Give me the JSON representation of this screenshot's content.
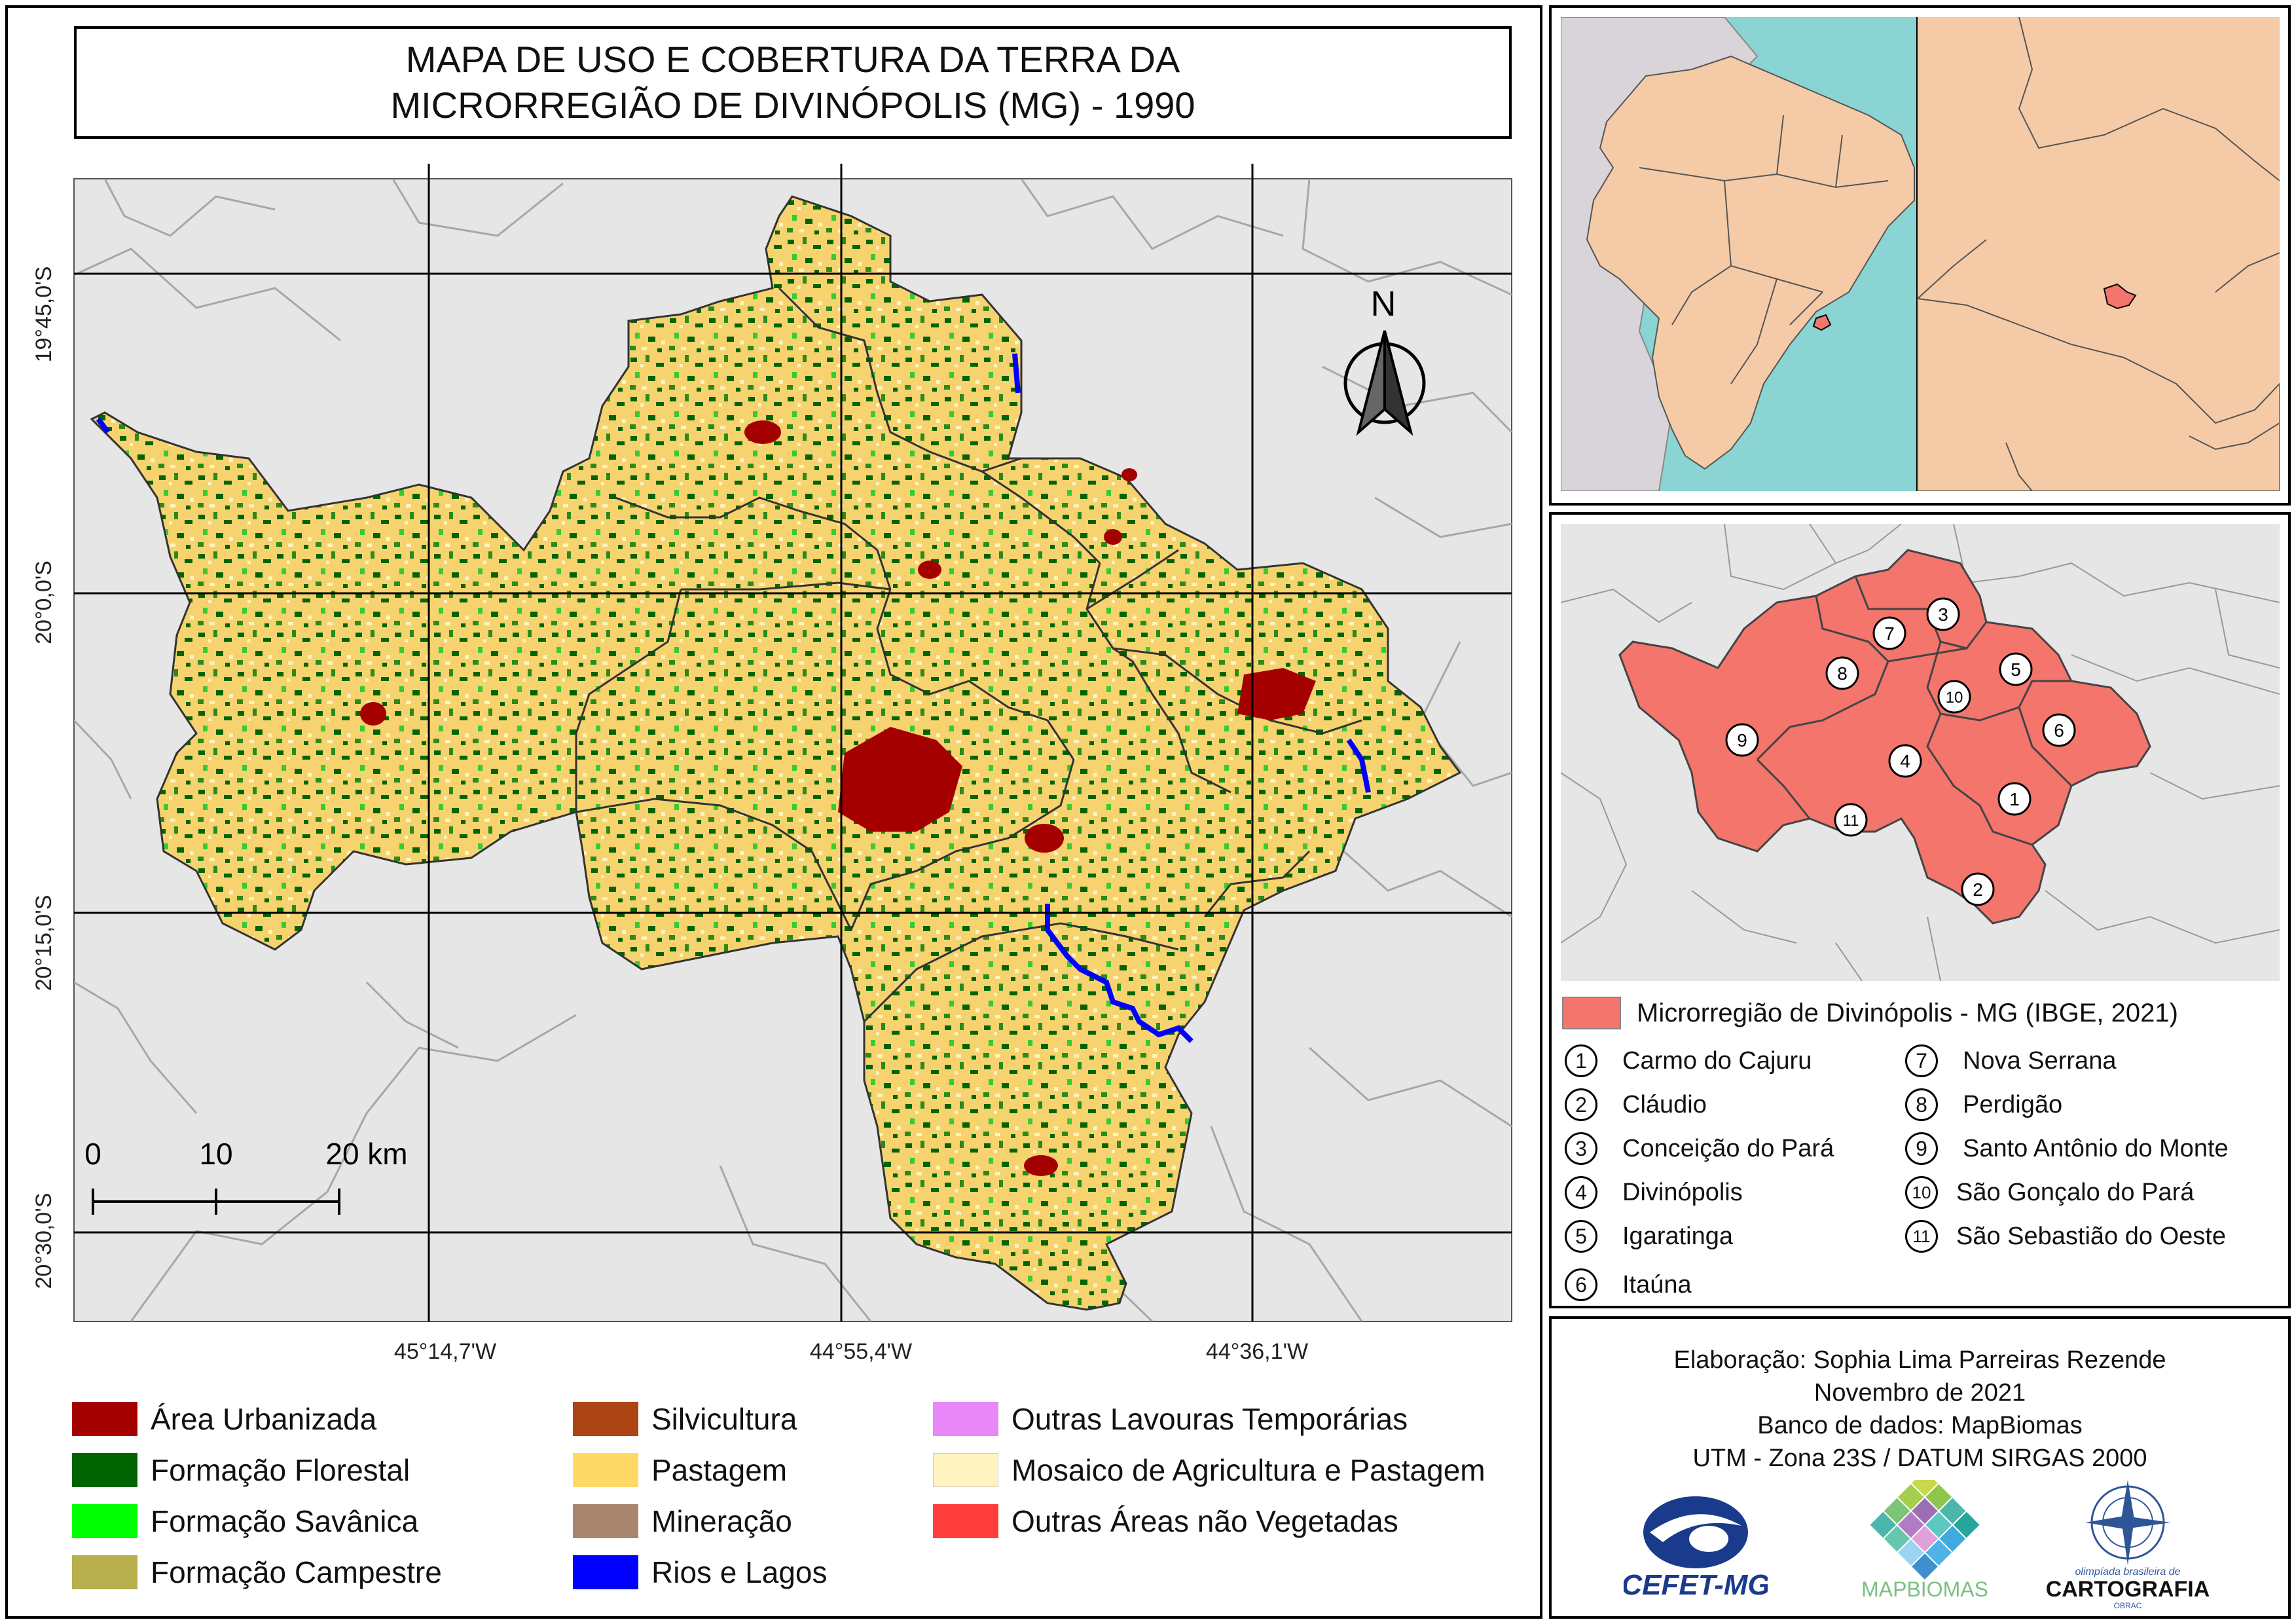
{
  "title": {
    "line1": "MAPA DE USO E COBERTURA DA TERRA DA",
    "line2": "MICRORREGIÃO DE DIVINÓPOLIS (MG) - 1990"
  },
  "grid": {
    "lat_labels": [
      "19°45,0'S",
      "20°0,0'S",
      "20°15,0'S",
      "20°30,0'S"
    ],
    "lon_labels": [
      "45°14,7'W",
      "44°55,4'W",
      "44°36,1'W"
    ]
  },
  "north_arrow": {
    "label": "N"
  },
  "scale_bar": {
    "labels": [
      "0",
      "10",
      "20 km"
    ]
  },
  "legend": {
    "items": [
      {
        "label": "Área Urbanizada",
        "color": "#a50000"
      },
      {
        "label": "Formação Florestal",
        "color": "#006400"
      },
      {
        "label": "Formação Savânica",
        "color": "#00ff00"
      },
      {
        "label": "Formação Campestre",
        "color": "#b8af4f"
      },
      {
        "label": "Silvicultura",
        "color": "#ad4413"
      },
      {
        "label": "Pastagem",
        "color": "#ffd966"
      },
      {
        "label": "Mineração",
        "color": "#a8866e"
      },
      {
        "label": "Rios e Lagos",
        "color": "#0000ff"
      },
      {
        "label": "Outras Lavouras Temporárias",
        "color": "#e787f8"
      },
      {
        "label": "Mosaico de Agricultura e Pastagem",
        "color": "#fff3bf"
      },
      {
        "label": "Outras Áreas não Vegetadas",
        "color": "#ff3d3d"
      }
    ]
  },
  "locator": {
    "sea_color": "#8ad4d4",
    "land_color": "#f5cba7",
    "other_land_color": "#d9d4da",
    "highlight_color": "#f4756b"
  },
  "municipality_map": {
    "legend_label": "Microrregião de Divinópolis - MG (IBGE, 2021)",
    "fill_color": "#f4756b",
    "municipalities": [
      {
        "num": "1",
        "name": "Carmo do Cajuru"
      },
      {
        "num": "2",
        "name": "Cláudio"
      },
      {
        "num": "3",
        "name": "Conceição do Pará"
      },
      {
        "num": "4",
        "name": "Divinópolis"
      },
      {
        "num": "5",
        "name": "Igaratinga"
      },
      {
        "num": "6",
        "name": "Itaúna"
      },
      {
        "num": "7",
        "name": "Nova Serrana"
      },
      {
        "num": "8",
        "name": "Perdigão"
      },
      {
        "num": "9",
        "name": "Santo Antônio do Monte"
      },
      {
        "num": "10",
        "name": "São Gonçalo do Pará"
      },
      {
        "num": "11",
        "name": "São Sebastião do Oeste"
      }
    ]
  },
  "credits": {
    "line1": "Elaboração: Sophia Lima Parreiras Rezende",
    "line2": "Novembro de 2021",
    "line3": "Banco de dados: MapBiomas",
    "line4": "UTM - Zona 23S /  DATUM SIRGAS 2000",
    "logo_cefet": "CEFET-MG",
    "logo_mapbiomas": "MAPBIOMAS",
    "logo_obc_small": "olimpíada brasileira de",
    "logo_obc": "CARTOGRAFIA",
    "logo_obc_sub": "OBRAC"
  }
}
